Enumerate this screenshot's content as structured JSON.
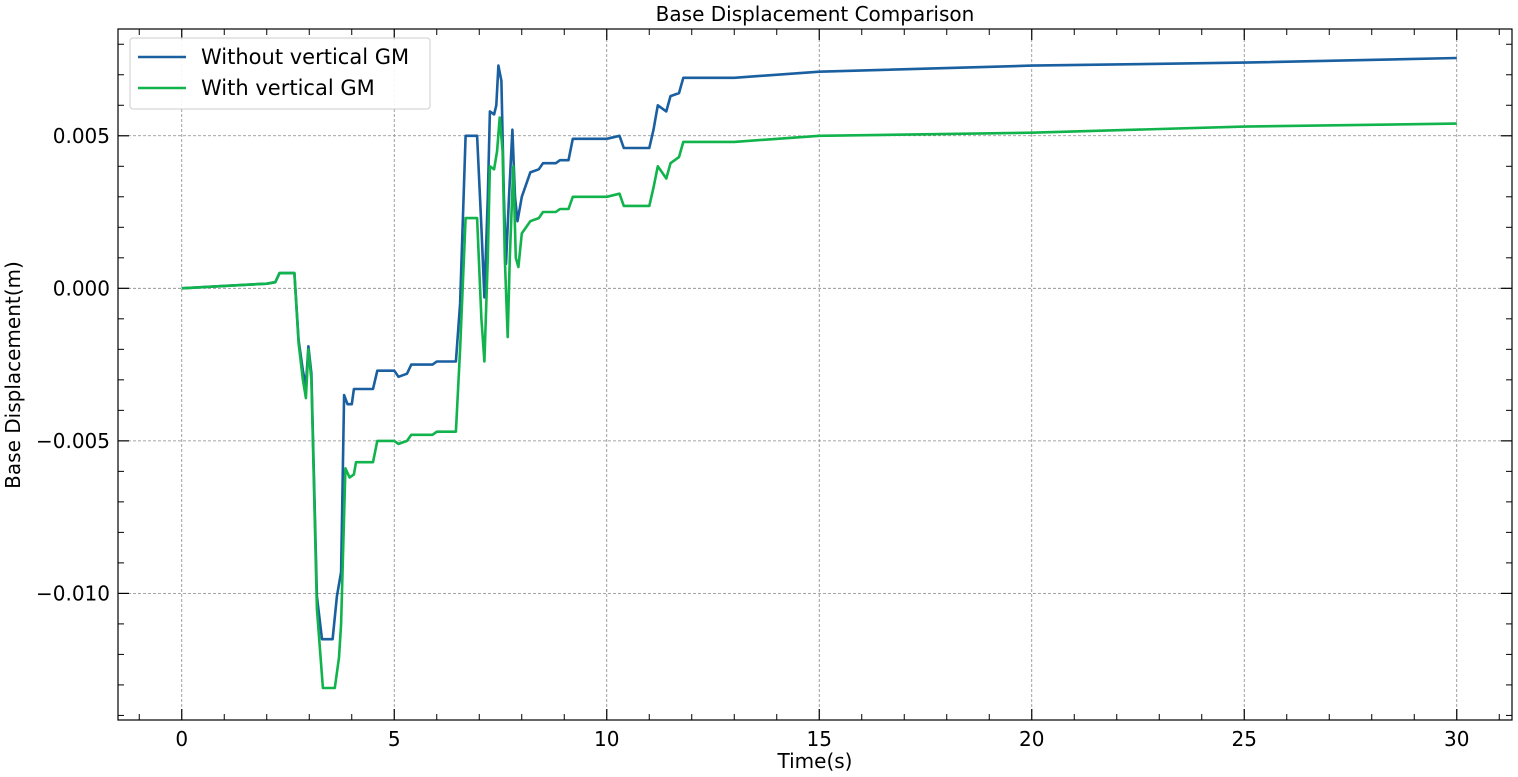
{
  "chart_data": {
    "type": "line",
    "title": "Base Displacement Comparison",
    "xlabel": "Time(s)",
    "ylabel": "Base Displacement(m)",
    "xlim": [
      -1.5,
      31.3
    ],
    "ylim": [
      -0.01415,
      0.0085
    ],
    "xticks": [
      0,
      5,
      10,
      15,
      20,
      25,
      30
    ],
    "xtick_labels": [
      "0",
      "5",
      "10",
      "15",
      "20",
      "25",
      "30"
    ],
    "yticks": [
      -0.01,
      -0.005,
      0.0,
      0.005
    ],
    "ytick_labels": [
      "−0.010",
      "−0.005",
      "0.000",
      "0.005"
    ],
    "grid": true,
    "legend_position": "top-left",
    "series": [
      {
        "name": "Without vertical GM",
        "color": "#1a5fa0",
        "points": [
          [
            0,
            0
          ],
          [
            1,
            8e-05
          ],
          [
            2,
            0.00015
          ],
          [
            2.2,
            0.0002
          ],
          [
            2.3,
            0.0005
          ],
          [
            2.65,
            0.0005
          ],
          [
            2.75,
            -0.0017
          ],
          [
            2.85,
            -0.0027
          ],
          [
            2.92,
            -0.0032
          ],
          [
            2.98,
            -0.0019
          ],
          [
            3.05,
            -0.0028
          ],
          [
            3.18,
            -0.0101
          ],
          [
            3.3,
            -0.0115
          ],
          [
            3.55,
            -0.0115
          ],
          [
            3.65,
            -0.0101
          ],
          [
            3.75,
            -0.0093
          ],
          [
            3.82,
            -0.0035
          ],
          [
            3.9,
            -0.0038
          ],
          [
            4.0,
            -0.0038
          ],
          [
            4.05,
            -0.0033
          ],
          [
            4.5,
            -0.0033
          ],
          [
            4.6,
            -0.0027
          ],
          [
            5.0,
            -0.0027
          ],
          [
            5.1,
            -0.0029
          ],
          [
            5.3,
            -0.0028
          ],
          [
            5.4,
            -0.0025
          ],
          [
            5.9,
            -0.0025
          ],
          [
            6.0,
            -0.0024
          ],
          [
            6.45,
            -0.0024
          ],
          [
            6.55,
            -0.0005
          ],
          [
            6.68,
            0.005
          ],
          [
            6.95,
            0.005
          ],
          [
            7.05,
            0.002
          ],
          [
            7.12,
            -0.0003
          ],
          [
            7.2,
            0.003
          ],
          [
            7.25,
            0.0058
          ],
          [
            7.35,
            0.0057
          ],
          [
            7.4,
            0.006
          ],
          [
            7.45,
            0.0073
          ],
          [
            7.52,
            0.0068
          ],
          [
            7.58,
            0.003
          ],
          [
            7.63,
            0.0008
          ],
          [
            7.7,
            0.003
          ],
          [
            7.78,
            0.0052
          ],
          [
            7.84,
            0.003
          ],
          [
            7.9,
            0.0022
          ],
          [
            8.0,
            0.003
          ],
          [
            8.2,
            0.0038
          ],
          [
            8.4,
            0.0039
          ],
          [
            8.5,
            0.0041
          ],
          [
            8.8,
            0.0041
          ],
          [
            8.9,
            0.0042
          ],
          [
            9.1,
            0.0042
          ],
          [
            9.2,
            0.0049
          ],
          [
            10.0,
            0.0049
          ],
          [
            10.3,
            0.005
          ],
          [
            10.4,
            0.0046
          ],
          [
            11.0,
            0.0046
          ],
          [
            11.1,
            0.0052
          ],
          [
            11.2,
            0.006
          ],
          [
            11.4,
            0.0058
          ],
          [
            11.5,
            0.0063
          ],
          [
            11.7,
            0.0064
          ],
          [
            11.8,
            0.0069
          ],
          [
            13.0,
            0.0069
          ],
          [
            15.0,
            0.0071
          ],
          [
            20.0,
            0.0073
          ],
          [
            25.0,
            0.0074
          ],
          [
            30.0,
            0.00755
          ]
        ]
      },
      {
        "name": "With vertical GM",
        "color": "#11b34c",
        "points": [
          [
            0,
            0
          ],
          [
            1,
            8e-05
          ],
          [
            2,
            0.00015
          ],
          [
            2.2,
            0.0002
          ],
          [
            2.3,
            0.0005
          ],
          [
            2.65,
            0.0005
          ],
          [
            2.75,
            -0.0018
          ],
          [
            2.85,
            -0.003
          ],
          [
            2.92,
            -0.0036
          ],
          [
            2.98,
            -0.002
          ],
          [
            3.05,
            -0.003
          ],
          [
            3.18,
            -0.0105
          ],
          [
            3.32,
            -0.0131
          ],
          [
            3.6,
            -0.0131
          ],
          [
            3.7,
            -0.0121
          ],
          [
            3.75,
            -0.011
          ],
          [
            3.85,
            -0.0059
          ],
          [
            3.95,
            -0.0062
          ],
          [
            4.05,
            -0.0061
          ],
          [
            4.1,
            -0.0057
          ],
          [
            4.5,
            -0.0057
          ],
          [
            4.6,
            -0.005
          ],
          [
            5.0,
            -0.005
          ],
          [
            5.1,
            -0.0051
          ],
          [
            5.3,
            -0.005
          ],
          [
            5.4,
            -0.0048
          ],
          [
            5.9,
            -0.0048
          ],
          [
            6.0,
            -0.0047
          ],
          [
            6.45,
            -0.0047
          ],
          [
            6.55,
            -0.002
          ],
          [
            6.68,
            0.0023
          ],
          [
            6.95,
            0.0023
          ],
          [
            7.05,
            -0.001
          ],
          [
            7.12,
            -0.0024
          ],
          [
            7.2,
            0.001
          ],
          [
            7.25,
            0.004
          ],
          [
            7.35,
            0.0039
          ],
          [
            7.42,
            0.0045
          ],
          [
            7.48,
            0.0056
          ],
          [
            7.55,
            0.0045
          ],
          [
            7.6,
            0.001
          ],
          [
            7.67,
            -0.0016
          ],
          [
            7.72,
            0.001
          ],
          [
            7.8,
            0.004
          ],
          [
            7.86,
            0.001
          ],
          [
            7.92,
            0.0007
          ],
          [
            8.0,
            0.0018
          ],
          [
            8.2,
            0.0022
          ],
          [
            8.4,
            0.0023
          ],
          [
            8.5,
            0.0025
          ],
          [
            8.8,
            0.0025
          ],
          [
            8.9,
            0.0026
          ],
          [
            9.1,
            0.0026
          ],
          [
            9.2,
            0.003
          ],
          [
            10.0,
            0.003
          ],
          [
            10.3,
            0.0031
          ],
          [
            10.4,
            0.0027
          ],
          [
            11.0,
            0.0027
          ],
          [
            11.1,
            0.0033
          ],
          [
            11.2,
            0.004
          ],
          [
            11.4,
            0.0036
          ],
          [
            11.5,
            0.0041
          ],
          [
            11.7,
            0.0043
          ],
          [
            11.8,
            0.0048
          ],
          [
            13.0,
            0.0048
          ],
          [
            15.0,
            0.005
          ],
          [
            20.0,
            0.0051
          ],
          [
            25.0,
            0.0053
          ],
          [
            30.0,
            0.0054
          ]
        ]
      }
    ]
  }
}
